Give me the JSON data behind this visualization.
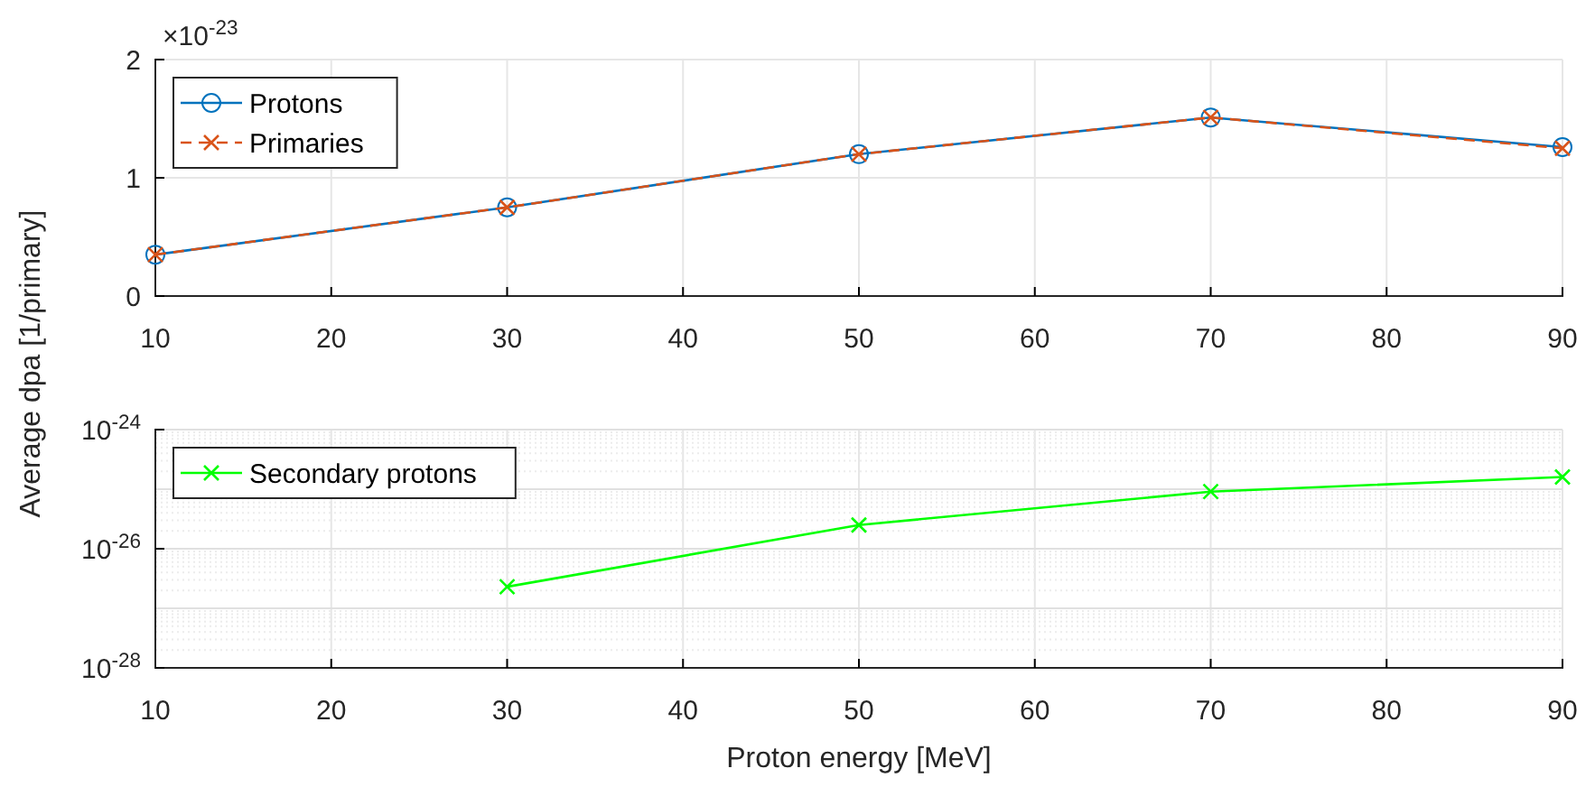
{
  "chart_data": [
    {
      "type": "line",
      "ylabel": "Average dpa [1/primary]",
      "x": [
        10,
        30,
        50,
        70,
        90
      ],
      "xlim": [
        10,
        90
      ],
      "xticks": [
        10,
        20,
        30,
        40,
        50,
        60,
        70,
        80,
        90
      ],
      "ylim": [
        0,
        2
      ],
      "yticks": [
        0,
        1,
        2
      ],
      "annotations": [
        "×10$^{-23}$"
      ],
      "grid": true,
      "legend": "top left",
      "series": [
        {
          "name": "Protons",
          "color": "#0072bd",
          "marker": "circle",
          "line_style": "solid",
          "values": [
            0.35,
            0.75,
            1.2,
            1.51,
            1.26
          ]
        },
        {
          "name": "Primaries",
          "color": "#d95319",
          "marker": "cross",
          "line_style": "dashed",
          "values": [
            0.35,
            0.75,
            1.2,
            1.51,
            1.25
          ]
        }
      ]
    },
    {
      "type": "line",
      "xlabel": "Proton energy [MeV]",
      "xlim": [
        10,
        90
      ],
      "xticks": [
        10,
        20,
        30,
        40,
        50,
        60,
        70,
        80,
        90
      ],
      "log": true,
      "ylim": [
        1e-28,
        1e-24
      ],
      "yticks": [
        {
          "value": 1e-28,
          "label": "10$^{-28}$"
        },
        {
          "value": 1e-26,
          "label": "10$^{-26}$"
        },
        {
          "value": 1e-24,
          "label": "10$^{-24}$"
        }
      ],
      "grid": true,
      "legend": "top left",
      "series": [
        {
          "name": "Secondary protons",
          "color": "#00ff00",
          "marker": "cross",
          "line_style": "solid",
          "x": [
            30,
            50,
            70,
            90
          ],
          "values": [
            2.3e-27,
            2.5e-26,
            9.1e-26,
            1.6e-25
          ]
        }
      ]
    }
  ]
}
